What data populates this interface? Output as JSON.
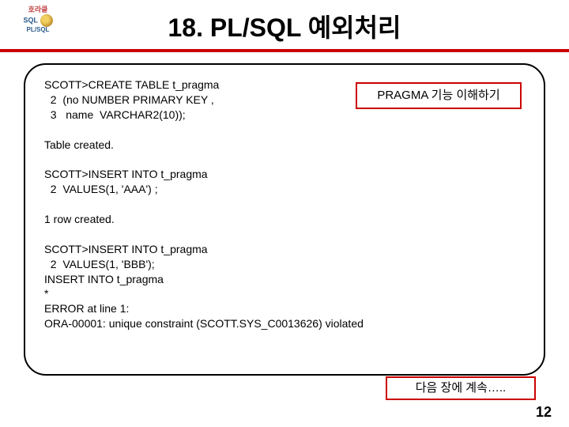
{
  "logo": {
    "line1": "호라클",
    "line2": "SQL",
    "line3": "PL/SQL"
  },
  "title": "18. PL/SQL 예외처리",
  "code": "SCOTT>CREATE TABLE t_pragma\n  2  (no NUMBER PRIMARY KEY ,\n  3   name  VARCHAR2(10));\n\nTable created.\n\nSCOTT>INSERT INTO t_pragma\n  2  VALUES(1, 'AAA') ;\n\n1 row created.\n\nSCOTT>INSERT INTO t_pragma\n  2  VALUES(1, 'BBB');\nINSERT INTO t_pragma\n*\nERROR at line 1:\nORA-00001: unique constraint (SCOTT.SYS_C0013626) violated",
  "callout1": "PRAGMA 기능 이해하기",
  "callout2": "다음 장에 계속…..",
  "page_number": "12",
  "colors": {
    "accent_red": "#cc0000",
    "text": "#000000",
    "background": "#ffffff"
  }
}
